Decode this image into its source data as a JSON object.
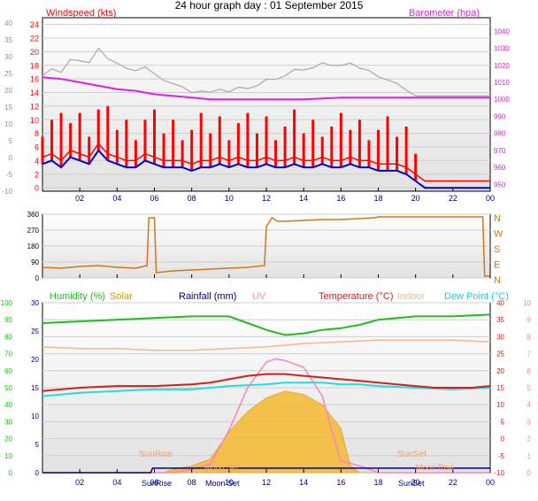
{
  "title": "24 hour graph day : 01 September 2015",
  "colors": {
    "wind_speed": "#ff0000",
    "wind_avg": "#0000cc",
    "barometer": "#e020e0",
    "wind_dir": "#d07818",
    "humidity": "#22bb22",
    "solar": "#f5b830",
    "rainfall": "#000080",
    "uv": "#ff80c0",
    "temperature": "#cc2222",
    "indoor": "#f0b890",
    "dew_point": "#22dddd",
    "gust_grey": "#a8a8a8",
    "tick_grey": "#909090"
  },
  "x_ticks": [
    "02",
    "04",
    "06",
    "08",
    "10",
    "12",
    "14",
    "16",
    "18",
    "20",
    "22",
    "00"
  ],
  "chart_data": [
    {
      "type": "line",
      "panel": "wind",
      "left_axis_label": "Windspeed (kts)",
      "right_axis_label": "Barometer (hpa)",
      "left_ticks": [
        "24",
        "22",
        "20",
        "18",
        "16",
        "14",
        "12",
        "10",
        "8",
        "6",
        "4",
        "2",
        "0"
      ],
      "right_ticks": [
        "1040",
        "1030",
        "1020",
        "1010",
        "1000",
        "990",
        "980",
        "970",
        "960",
        "950"
      ],
      "outer_left_ticks": [
        "40",
        "35",
        "30",
        "25",
        "20",
        "15",
        "10",
        "5",
        "0",
        "-5",
        "-10"
      ],
      "left_ylim": [
        -0.5,
        25
      ],
      "right_ylim": [
        946,
        1048
      ],
      "series": [
        {
          "name": "Windspeed (kts)",
          "points": [
            [
              0.0,
              3.5
            ],
            [
              0.5,
              4.0
            ],
            [
              1.0,
              3.0
            ],
            [
              1.5,
              4.5
            ],
            [
              2.0,
              4.0
            ],
            [
              2.5,
              3.5
            ],
            [
              3.0,
              5.5
            ],
            [
              3.5,
              4.0
            ],
            [
              4.0,
              3.5
            ],
            [
              4.5,
              3.0
            ],
            [
              5.0,
              3.0
            ],
            [
              5.5,
              4.0
            ],
            [
              6.0,
              3.5
            ],
            [
              6.5,
              3.0
            ],
            [
              7.0,
              3.0
            ],
            [
              7.5,
              3.0
            ],
            [
              8.0,
              2.5
            ],
            [
              8.5,
              3.0
            ],
            [
              9.0,
              3.0
            ],
            [
              9.5,
              3.5
            ],
            [
              10.0,
              3.0
            ],
            [
              10.5,
              3.5
            ],
            [
              11.0,
              3.0
            ],
            [
              11.5,
              3.0
            ],
            [
              12.0,
              3.5
            ],
            [
              12.5,
              3.0
            ],
            [
              13.0,
              3.0
            ],
            [
              13.5,
              3.5
            ],
            [
              14.0,
              3.0
            ],
            [
              14.5,
              3.0
            ],
            [
              15.0,
              3.5
            ],
            [
              15.5,
              3.0
            ],
            [
              16.0,
              3.0
            ],
            [
              16.5,
              3.5
            ],
            [
              17.0,
              3.0
            ],
            [
              17.5,
              3.0
            ],
            [
              18.0,
              2.5
            ],
            [
              18.5,
              2.5
            ],
            [
              19.0,
              2.5
            ],
            [
              19.5,
              2.0
            ],
            [
              20.0,
              1.0
            ],
            [
              20.5,
              0.0
            ],
            [
              21.0,
              0.0
            ],
            [
              21.5,
              0.0
            ],
            [
              22.0,
              0.0
            ],
            [
              22.5,
              0.0
            ],
            [
              23.0,
              0.0
            ],
            [
              23.5,
              0.0
            ],
            [
              24.0,
              0.0
            ]
          ]
        },
        {
          "name": "Barometer (hpa)",
          "points": [
            [
              0.0,
              1013
            ],
            [
              1.0,
              1012
            ],
            [
              2.0,
              1010
            ],
            [
              3.0,
              1008
            ],
            [
              4.0,
              1006
            ],
            [
              5.0,
              1005
            ],
            [
              6.0,
              1003
            ],
            [
              7.0,
              1002
            ],
            [
              8.0,
              1001
            ],
            [
              9.0,
              1000
            ],
            [
              10.0,
              1000
            ],
            [
              11.0,
              1000
            ],
            [
              12.0,
              1000
            ],
            [
              14.0,
              1000
            ],
            [
              16.0,
              1001
            ],
            [
              18.0,
              1001
            ],
            [
              20.0,
              1001
            ],
            [
              22.0,
              1001
            ],
            [
              24.0,
              1001
            ]
          ]
        }
      ]
    },
    {
      "type": "line",
      "panel": "wind_direction",
      "left_ticks": [
        "360",
        "270",
        "180",
        "90",
        "0"
      ],
      "right_ticks": [
        "N",
        "W",
        "S",
        "E",
        "N"
      ],
      "ylim": [
        0,
        360
      ],
      "series": [
        {
          "name": "Wind Direction",
          "points": [
            [
              0.0,
              60
            ],
            [
              1.0,
              55
            ],
            [
              2.0,
              65
            ],
            [
              3.0,
              70
            ],
            [
              4.0,
              60
            ],
            [
              5.0,
              55
            ],
            [
              5.6,
              70
            ],
            [
              5.7,
              340
            ],
            [
              6.0,
              340
            ],
            [
              6.1,
              30
            ],
            [
              7.0,
              40
            ],
            [
              8.0,
              45
            ],
            [
              9.0,
              50
            ],
            [
              10.0,
              55
            ],
            [
              11.0,
              60
            ],
            [
              11.9,
              70
            ],
            [
              12.0,
              290
            ],
            [
              12.3,
              340
            ],
            [
              12.6,
              320
            ],
            [
              13.0,
              320
            ],
            [
              14.0,
              325
            ],
            [
              15.0,
              330
            ],
            [
              16.0,
              330
            ],
            [
              17.0,
              335
            ],
            [
              17.8,
              340
            ],
            [
              18.0,
              345
            ],
            [
              19.0,
              345
            ],
            [
              20.0,
              345
            ],
            [
              21.0,
              345
            ],
            [
              22.0,
              345
            ],
            [
              23.0,
              345
            ],
            [
              23.6,
              345
            ],
            [
              23.7,
              10
            ],
            [
              24.0,
              10
            ]
          ]
        }
      ]
    },
    {
      "type": "line",
      "panel": "temperature_humidity",
      "legend": [
        "Humidity (%)",
        "Solar",
        "Rainfall (mm)",
        "UV",
        "Temperature (°C)",
        "Indoor",
        "Dew Point (°C)"
      ],
      "humidity_ticks": [
        "100",
        "90",
        "80",
        "70",
        "60",
        "50",
        "40",
        "30",
        "20",
        "10",
        "0"
      ],
      "rain_ticks": [
        "30",
        "25",
        "20",
        "15",
        "10",
        "5",
        "0"
      ],
      "temp_ticks": [
        "40",
        "35",
        "30",
        "25",
        "20",
        "15",
        "10",
        "5",
        "0",
        "-5",
        "-10"
      ],
      "uv_ticks": [
        "10",
        "9",
        "8",
        "7",
        "6",
        "5",
        "4",
        "3",
        "2",
        "1",
        "0"
      ],
      "temp_ylim": [
        -10,
        40
      ],
      "annotations": [
        "SunRise",
        "SunSet",
        "Moon Set",
        "Moon Rise"
      ],
      "series": [
        {
          "name": "Temperature (°C)",
          "points": [
            [
              0.0,
              14.0
            ],
            [
              2.0,
              15.0
            ],
            [
              4.0,
              15.5
            ],
            [
              6.0,
              15.5
            ],
            [
              8.0,
              16.0
            ],
            [
              9.0,
              16.5
            ],
            [
              10.0,
              17.5
            ],
            [
              11.0,
              18.5
            ],
            [
              12.0,
              19.0
            ],
            [
              13.0,
              19.0
            ],
            [
              14.0,
              18.5
            ],
            [
              15.0,
              18.0
            ],
            [
              16.0,
              17.5
            ],
            [
              17.0,
              17.0
            ],
            [
              18.0,
              16.5
            ],
            [
              19.0,
              16.0
            ],
            [
              20.0,
              15.5
            ],
            [
              21.0,
              15.0
            ],
            [
              22.0,
              15.0
            ],
            [
              23.0,
              15.0
            ],
            [
              24.0,
              15.5
            ]
          ]
        },
        {
          "name": "Dew Point (°C)",
          "points": [
            [
              0.0,
              12.5
            ],
            [
              2.0,
              13.5
            ],
            [
              4.0,
              14.0
            ],
            [
              6.0,
              14.5
            ],
            [
              8.0,
              14.5
            ],
            [
              10.0,
              15.5
            ],
            [
              12.0,
              16.0
            ],
            [
              13.0,
              16.5
            ],
            [
              14.0,
              16.5
            ],
            [
              15.0,
              16.5
            ],
            [
              16.0,
              16.0
            ],
            [
              17.0,
              16.0
            ],
            [
              18.0,
              15.5
            ],
            [
              20.0,
              15.0
            ],
            [
              22.0,
              14.5
            ],
            [
              24.0,
              15.0
            ]
          ]
        },
        {
          "name": "Indoor",
          "points": [
            [
              0.0,
              27.0
            ],
            [
              2.0,
              26.5
            ],
            [
              4.0,
              26.5
            ],
            [
              6.0,
              26.0
            ],
            [
              8.0,
              26.0
            ],
            [
              10.0,
              26.5
            ],
            [
              12.0,
              27.0
            ],
            [
              14.0,
              28.0
            ],
            [
              16.0,
              28.5
            ],
            [
              18.0,
              29.0
            ],
            [
              20.0,
              29.0
            ],
            [
              22.0,
              29.0
            ],
            [
              24.0,
              28.5
            ]
          ]
        },
        {
          "name": "Humidity (%)",
          "points": [
            [
              0.0,
              88
            ],
            [
              2.0,
              89
            ],
            [
              4.0,
              90
            ],
            [
              6.0,
              91
            ],
            [
              8.0,
              92
            ],
            [
              10.0,
              92
            ],
            [
              11.0,
              88
            ],
            [
              12.0,
              84
            ],
            [
              13.0,
              81
            ],
            [
              14.0,
              82
            ],
            [
              15.0,
              84
            ],
            [
              16.0,
              85
            ],
            [
              17.0,
              87
            ],
            [
              18.0,
              90
            ],
            [
              20.0,
              92
            ],
            [
              22.0,
              92
            ],
            [
              24.0,
              93
            ]
          ]
        },
        {
          "name": "Solar",
          "points": [
            [
              0.0,
              -10
            ],
            [
              6.5,
              -10
            ],
            [
              7.0,
              -9
            ],
            [
              8.0,
              -8
            ],
            [
              9.0,
              -6
            ],
            [
              10.0,
              2
            ],
            [
              11.0,
              8
            ],
            [
              12.0,
              12
            ],
            [
              13.0,
              14
            ],
            [
              14.0,
              13
            ],
            [
              15.0,
              10
            ],
            [
              16.0,
              3
            ],
            [
              16.5,
              -8
            ],
            [
              17.0,
              -10
            ],
            [
              24.0,
              -10
            ]
          ]
        },
        {
          "name": "UV",
          "points": [
            [
              0.0,
              0
            ],
            [
              7.0,
              0
            ],
            [
              8.0,
              0.2
            ],
            [
              9.0,
              0.5
            ],
            [
              10.0,
              2.5
            ],
            [
              11.0,
              5.0
            ],
            [
              12.0,
              6.5
            ],
            [
              12.5,
              6.7
            ],
            [
              13.0,
              6.6
            ],
            [
              14.0,
              6.2
            ],
            [
              15.0,
              4.5
            ],
            [
              15.5,
              2.5
            ],
            [
              16.0,
              0.7
            ],
            [
              17.0,
              0.4
            ],
            [
              18.0,
              0
            ],
            [
              24.0,
              0
            ]
          ]
        },
        {
          "name": "Rainfall (mm)",
          "points": [
            [
              0.0,
              0.0
            ],
            [
              5.8,
              0.0
            ],
            [
              5.9,
              0.8
            ],
            [
              24.0,
              0.8
            ]
          ]
        }
      ]
    }
  ]
}
